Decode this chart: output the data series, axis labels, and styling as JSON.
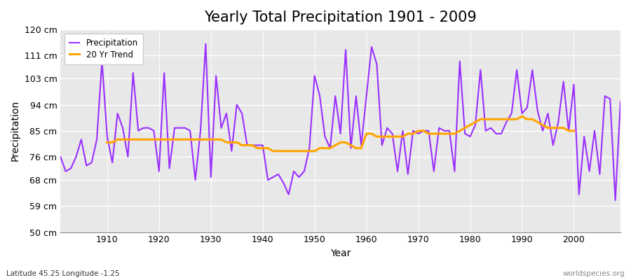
{
  "title": "Yearly Total Precipitation 1901 - 2009",
  "xlabel": "Year",
  "ylabel": "Precipitation",
  "lat_lon_label": "Latitude 45.25 Longitude -1.25",
  "watermark": "worldspecies.org",
  "years": [
    1901,
    1902,
    1903,
    1904,
    1905,
    1906,
    1907,
    1908,
    1909,
    1910,
    1911,
    1912,
    1913,
    1914,
    1915,
    1916,
    1917,
    1918,
    1919,
    1920,
    1921,
    1922,
    1923,
    1924,
    1925,
    1926,
    1927,
    1928,
    1929,
    1930,
    1931,
    1932,
    1933,
    1934,
    1935,
    1936,
    1937,
    1938,
    1939,
    1940,
    1941,
    1942,
    1943,
    1944,
    1945,
    1946,
    1947,
    1948,
    1949,
    1950,
    1951,
    1952,
    1953,
    1954,
    1955,
    1956,
    1957,
    1958,
    1959,
    1960,
    1961,
    1962,
    1963,
    1964,
    1965,
    1966,
    1967,
    1968,
    1969,
    1970,
    1971,
    1972,
    1973,
    1974,
    1975,
    1976,
    1977,
    1978,
    1979,
    1980,
    1981,
    1982,
    1983,
    1984,
    1985,
    1986,
    1987,
    1988,
    1989,
    1990,
    1991,
    1992,
    1993,
    1994,
    1995,
    1996,
    1997,
    1998,
    1999,
    2000,
    2001,
    2002,
    2003,
    2004,
    2005,
    2006,
    2007,
    2008,
    2009
  ],
  "precip": [
    76,
    71,
    72,
    76,
    82,
    73,
    74,
    82,
    109,
    83,
    74,
    91,
    86,
    76,
    105,
    85,
    86,
    86,
    85,
    71,
    105,
    72,
    86,
    86,
    86,
    85,
    68,
    85,
    115,
    69,
    104,
    86,
    91,
    78,
    94,
    91,
    80,
    80,
    80,
    80,
    68,
    69,
    70,
    67,
    63,
    71,
    69,
    71,
    79,
    104,
    97,
    83,
    79,
    97,
    84,
    113,
    79,
    97,
    80,
    97,
    114,
    108,
    80,
    86,
    84,
    71,
    85,
    70,
    85,
    84,
    85,
    85,
    71,
    86,
    85,
    85,
    71,
    109,
    84,
    83,
    87,
    106,
    85,
    86,
    84,
    84,
    88,
    91,
    106,
    91,
    93,
    106,
    92,
    85,
    91,
    80,
    88,
    102,
    85,
    101,
    63,
    83,
    71,
    85,
    70,
    97,
    96,
    61,
    95
  ],
  "trend_years": [
    1910,
    1911,
    1912,
    1913,
    1914,
    1915,
    1916,
    1917,
    1918,
    1919,
    1920,
    1921,
    1922,
    1923,
    1924,
    1925,
    1926,
    1927,
    1928,
    1929,
    1930,
    1931,
    1932,
    1933,
    1934,
    1935,
    1936,
    1937,
    1938,
    1939,
    1940,
    1941,
    1942,
    1943,
    1944,
    1945,
    1946,
    1947,
    1948,
    1949,
    1950,
    1951,
    1952,
    1953,
    1954,
    1955,
    1956,
    1957,
    1958,
    1959,
    1960,
    1961,
    1962,
    1963,
    1964,
    1965,
    1966,
    1967,
    1968,
    1969,
    1970,
    1971,
    1972,
    1973,
    1974,
    1975,
    1976,
    1977,
    1978,
    1979,
    1980,
    1981,
    1982,
    1983,
    1984,
    1985,
    1986,
    1987,
    1988,
    1989,
    1990,
    1991,
    1992,
    1993,
    1994,
    1995,
    1996,
    1997,
    1998,
    1999,
    2000
  ],
  "trend": [
    81,
    81,
    82,
    82,
    82,
    82,
    82,
    82,
    82,
    82,
    82,
    82,
    82,
    82,
    82,
    82,
    82,
    82,
    82,
    82,
    82,
    82,
    82,
    81,
    81,
    81,
    80,
    80,
    80,
    79,
    79,
    79,
    78,
    78,
    78,
    78,
    78,
    78,
    78,
    78,
    78,
    79,
    79,
    79,
    80,
    81,
    81,
    80,
    79,
    79,
    84,
    84,
    83,
    83,
    83,
    83,
    83,
    83,
    84,
    84,
    85,
    85,
    84,
    84,
    84,
    84,
    84,
    84,
    85,
    86,
    87,
    88,
    89,
    89,
    89,
    89,
    89,
    89,
    89,
    89,
    90,
    89,
    89,
    88,
    87,
    86,
    86,
    86,
    86,
    85,
    85
  ],
  "precip_color": "#9B30FF",
  "trend_color": "#FFA500",
  "fig_bg_color": "#FFFFFF",
  "plot_bg_color": "#E8E8E8",
  "grid_color": "#FFFFFF",
  "ylim": [
    50,
    120
  ],
  "yticks": [
    50,
    59,
    68,
    76,
    85,
    94,
    103,
    111,
    120
  ],
  "ytick_labels": [
    "50 cm",
    "59 cm",
    "68 cm",
    "76 cm",
    "85 cm",
    "94 cm",
    "103 cm",
    "111 cm",
    "120 cm"
  ],
  "xlim": [
    1901,
    2009
  ],
  "xticks": [
    1910,
    1920,
    1930,
    1940,
    1950,
    1960,
    1970,
    1980,
    1990,
    2000
  ],
  "title_fontsize": 15,
  "axis_fontsize": 10,
  "tick_fontsize": 9,
  "line_width": 1.5,
  "lat_lon_color": "#333333",
  "watermark_color": "#888888"
}
